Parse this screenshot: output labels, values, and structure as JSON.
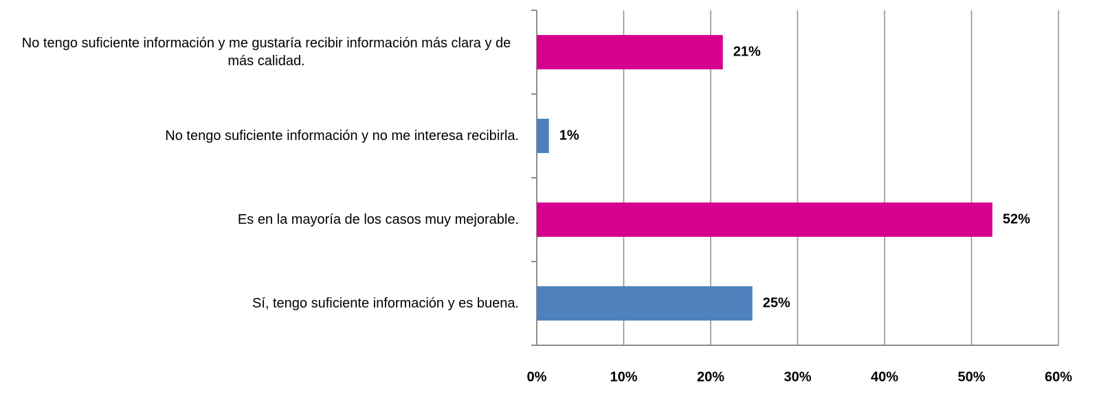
{
  "chart_data": {
    "type": "hbar",
    "categories": [
      "No tengo suficiente información y me gustaría recibir información más clara y de más calidad.",
      "No tengo suficiente información y no me interesa recibirla.",
      "Es en la mayoría de los casos muy mejorable.",
      "Sí, tengo suficiente información y es buena."
    ],
    "values": [
      21.4,
      1.4,
      52.4,
      24.8
    ],
    "value_labels": [
      "21%",
      "1%",
      "52%",
      "25%"
    ],
    "colors": [
      "#d6008f",
      "#4f81bd",
      "#d6008f",
      "#4f81bd"
    ],
    "xlim": [
      0,
      60
    ],
    "xticks": [
      {
        "value": 0,
        "label": "0%"
      },
      {
        "value": 10,
        "label": "10%"
      },
      {
        "value": 20,
        "label": "20%"
      },
      {
        "value": 30,
        "label": "30%"
      },
      {
        "value": 40,
        "label": "40%"
      },
      {
        "value": 50,
        "label": "50%"
      },
      {
        "value": 60,
        "label": "60%"
      }
    ],
    "grid": true
  }
}
